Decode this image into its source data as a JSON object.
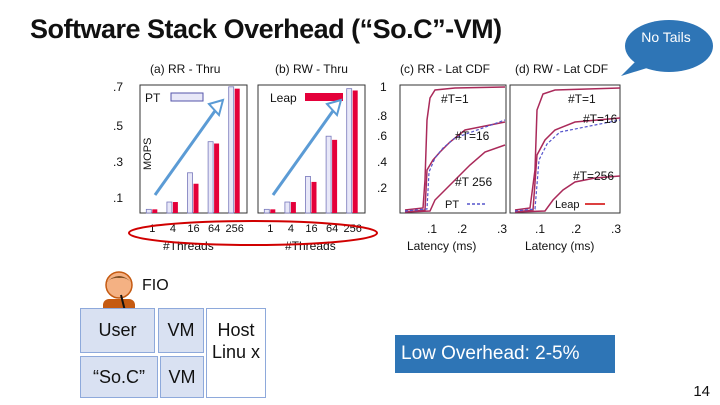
{
  "slide": {
    "title": "Software Stack Overhead (“So.C”-VM)",
    "page_number": "14"
  },
  "callout": {
    "bubble_text": "No Tails",
    "bubble_color": "#2e75b6",
    "low_overhead": "Low Overhead: 2-5%",
    "callout_color": "#2e75b6"
  },
  "diagram": {
    "fio_label": "FIO",
    "user_label": "User",
    "vm_label_top": "VM",
    "host_label": "Host Linu x",
    "soc_label": "“So.C”",
    "vm_label_bottom": "VM",
    "cell_fill": "#d9e1f2",
    "person_icon": "person-icon"
  },
  "figure_text": {
    "mops_label": "MOPS",
    "pt_legend": "PT",
    "leap_legend": "Leap",
    "threads_xlabel": "#Threads",
    "latency_xlabel": "Latency (ms)",
    "cdf_pt_legend": "PT",
    "cdf_leap_legend": "Leap",
    "t1": "#T=1",
    "t16": "#T=16",
    "t256": "#T 256",
    "t256b": "#T=256",
    "highlight_color": "#d00000"
  },
  "chart_data": [
    {
      "type": "bar",
      "title": "(a) RR - Thru",
      "xlabel": "#Threads",
      "ylabel": "MOPS",
      "categories": [
        "1",
        "4",
        "16",
        "64",
        "256"
      ],
      "series": [
        {
          "name": "PT",
          "values": [
            0.02,
            0.06,
            0.22,
            0.39,
            0.69
          ]
        },
        {
          "name": "Leap",
          "values": [
            0.02,
            0.06,
            0.16,
            0.38,
            0.68
          ]
        }
      ],
      "ylim": [
        0,
        0.7
      ],
      "yticks": [
        ".7",
        ".5",
        ".3",
        ".1"
      ],
      "legend": "top-left"
    },
    {
      "type": "bar",
      "title": "(b) RW - Thru",
      "xlabel": "#Threads",
      "categories": [
        "1",
        "4",
        "16",
        "64",
        "256"
      ],
      "series": [
        {
          "name": "PT",
          "values": [
            0.02,
            0.06,
            0.2,
            0.42,
            0.68
          ]
        },
        {
          "name": "Leap",
          "values": [
            0.02,
            0.06,
            0.17,
            0.4,
            0.67
          ]
        }
      ],
      "ylim": [
        0,
        0.7
      ],
      "legend": "top-left"
    },
    {
      "type": "line",
      "title": "(c) RR - Lat CDF",
      "xlabel": "Latency (ms)",
      "xticks": [
        ".1",
        ".2",
        ".3"
      ],
      "yticks": [
        "1",
        ".8",
        ".6",
        ".4",
        ".2"
      ],
      "xlim": [
        0,
        0.3
      ],
      "ylim": [
        0,
        1
      ],
      "legend": "bottom"
    },
    {
      "type": "line",
      "title": "(d) RW - Lat CDF",
      "xlabel": "Latency (ms)",
      "xticks": [
        ".1",
        ".2",
        ".3"
      ],
      "xlim": [
        0,
        0.3
      ],
      "ylim": [
        0,
        1
      ],
      "legend": "bottom"
    }
  ]
}
